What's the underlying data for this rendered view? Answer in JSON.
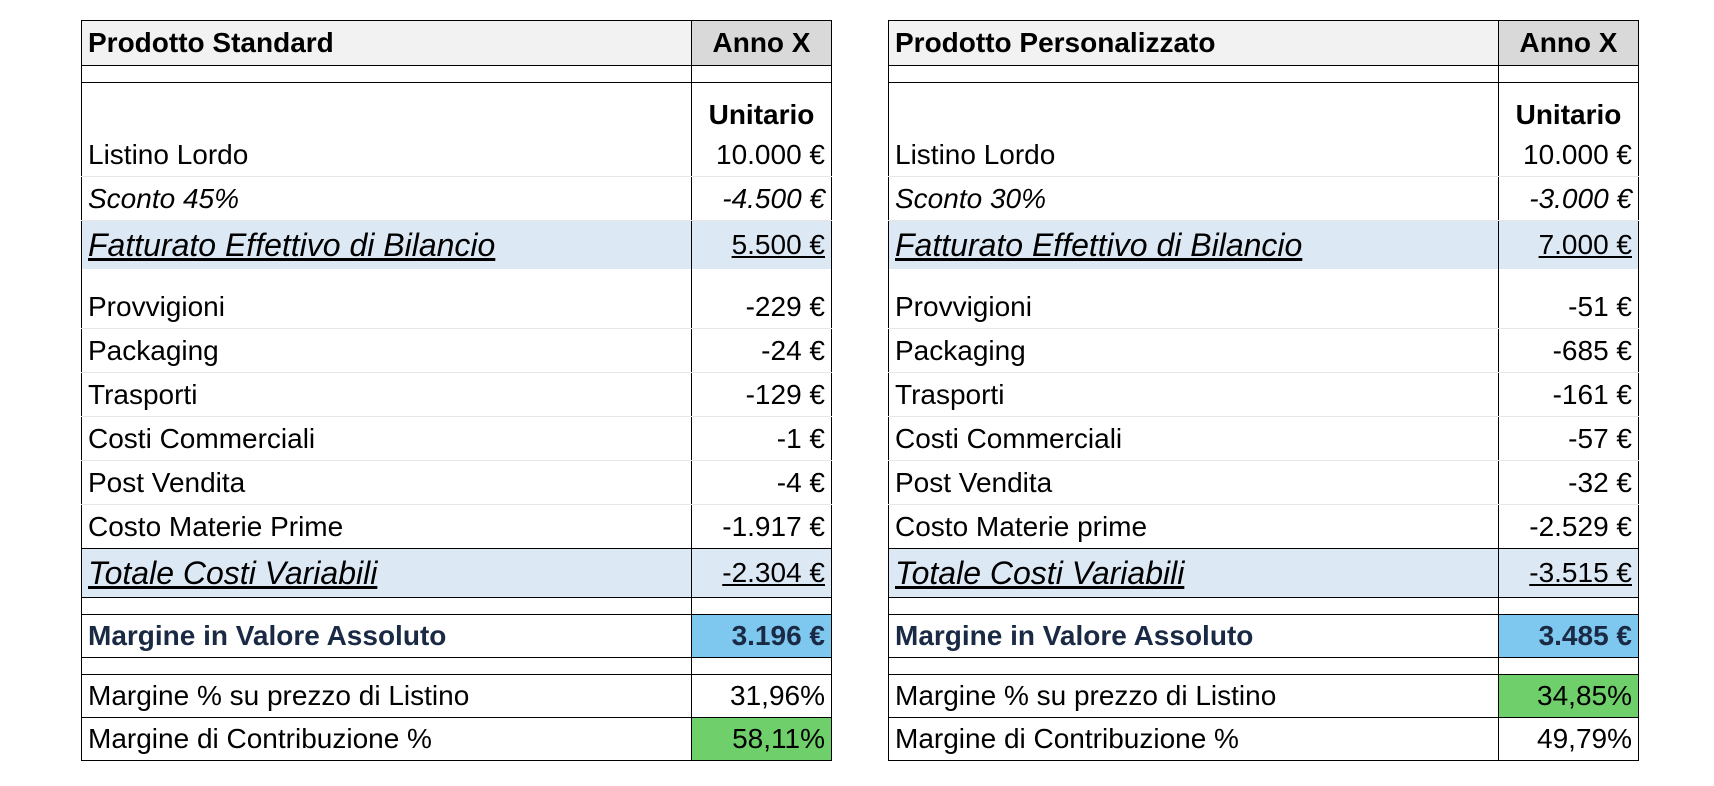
{
  "tables": [
    {
      "title": "Prodotto Standard",
      "period": "Anno X",
      "unit_label": "Unitario",
      "listino": {
        "label": "Listino Lordo",
        "value": "10.000 €"
      },
      "sconto": {
        "label": "Sconto 45%",
        "value": "-4.500 €"
      },
      "fatturato": {
        "label": "Fatturato Effettivo di Bilancio",
        "value": "5.500 €"
      },
      "costs": [
        {
          "label": "Provvigioni",
          "value": "-229 €"
        },
        {
          "label": "Packaging",
          "value": "-24 €"
        },
        {
          "label": "Trasporti",
          "value": "-129 €"
        },
        {
          "label": "Costi Commerciali",
          "value": "-1 €"
        },
        {
          "label": "Post Vendita",
          "value": "-4 €"
        },
        {
          "label": "Costo Materie Prime",
          "value": "-1.917 €"
        }
      ],
      "totale": {
        "label": "Totale Costi Variabili",
        "value": "-2.304 €"
      },
      "margine": {
        "label": "Margine in Valore Assoluto",
        "value": "3.196 €"
      },
      "margine_listino": {
        "label": "Margine % su prezzo di Listino",
        "value": "31,96%",
        "highlighted": false
      },
      "margine_contribuzione": {
        "label": "Margine di Contribuzione %",
        "value": "58,11%",
        "highlighted": true
      }
    },
    {
      "title": "Prodotto Personalizzato",
      "period": "Anno X",
      "unit_label": "Unitario",
      "listino": {
        "label": "Listino Lordo",
        "value": "10.000 €"
      },
      "sconto": {
        "label": "Sconto 30%",
        "value": "-3.000 €"
      },
      "fatturato": {
        "label": "Fatturato Effettivo di Bilancio",
        "value": "7.000 €"
      },
      "costs": [
        {
          "label": "Provvigioni",
          "value": "-51 €"
        },
        {
          "label": "Packaging",
          "value": "-685 €"
        },
        {
          "label": "Trasporti",
          "value": "-161 €"
        },
        {
          "label": "Costi Commerciali",
          "value": "-57 €"
        },
        {
          "label": "Post Vendita",
          "value": "-32 €"
        },
        {
          "label": "Costo Materie prime",
          "value": "-2.529 €"
        }
      ],
      "totale": {
        "label": "Totale Costi Variabili",
        "value": "-3.515 €"
      },
      "margine": {
        "label": "Margine in Valore Assoluto",
        "value": "3.485 €"
      },
      "margine_listino": {
        "label": "Margine % su prezzo di Listino",
        "value": "34,85%",
        "highlighted": true
      },
      "margine_contribuzione": {
        "label": "Margine di Contribuzione %",
        "value": "49,79%",
        "highlighted": false
      }
    }
  ],
  "colors": {
    "header_fill": "#f2f2f2",
    "period_fill": "#d9d9d9",
    "total_fill": "#dde8f5",
    "margin_fill": "#7ec7ee",
    "highlight_fill": "#6fcf6a",
    "margin_text": "#1a2a44"
  }
}
